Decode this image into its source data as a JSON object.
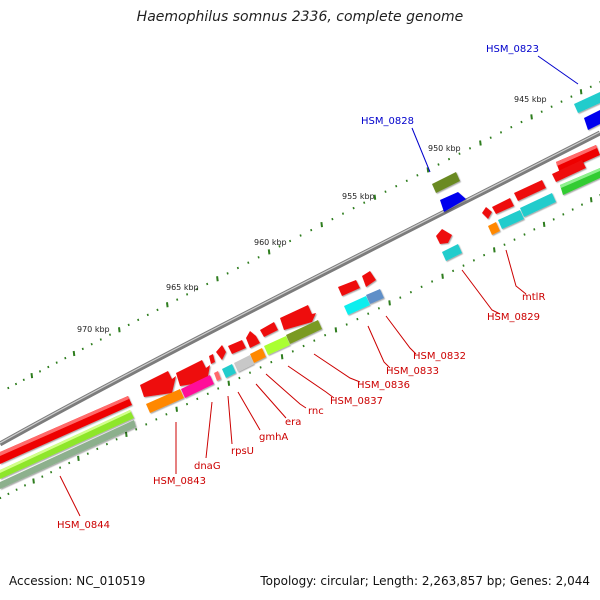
{
  "title": "Haemophilus somnus 2336, complete genome",
  "footer": {
    "accession": "Accession: NC_010519",
    "summary": "Topology: circular; Length: 2,263,857 bp; Genes: 2,044"
  },
  "colors": {
    "backbone": "#8a8a8a",
    "label_red": "#cc0000",
    "label_blue": "#0000cc",
    "tick": "#2e7d1e"
  },
  "kbp_labels": [
    "945 kbp",
    "950 kbp",
    "955 kbp",
    "960 kbp",
    "965 kbp",
    "970 kbp"
  ],
  "gene_labels": [
    {
      "name": "HSM_0823",
      "color": "blue"
    },
    {
      "name": "HSM_0828",
      "color": "blue"
    },
    {
      "name": "mtlR",
      "color": "red"
    },
    {
      "name": "HSM_0829",
      "color": "red"
    },
    {
      "name": "HSM_0832",
      "color": "red"
    },
    {
      "name": "HSM_0833",
      "color": "red"
    },
    {
      "name": "HSM_0836",
      "color": "red"
    },
    {
      "name": "HSM_0837",
      "color": "red"
    },
    {
      "name": "rnc",
      "color": "red"
    },
    {
      "name": "era",
      "color": "red"
    },
    {
      "name": "gmhA",
      "color": "red"
    },
    {
      "name": "rpsU",
      "color": "red"
    },
    {
      "name": "dnaG",
      "color": "red"
    },
    {
      "name": "HSM_0843",
      "color": "red"
    },
    {
      "name": "HSM_0844",
      "color": "red"
    }
  ]
}
